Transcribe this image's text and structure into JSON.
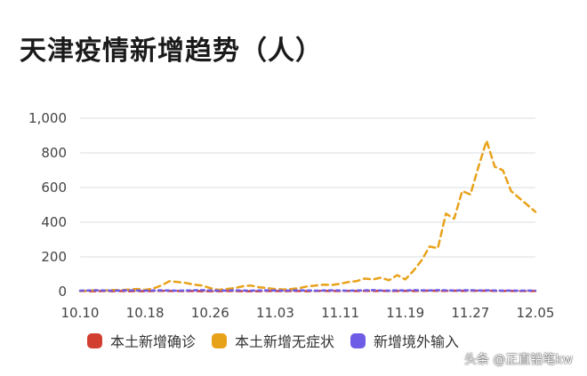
{
  "title": "天津疫情新增趋势（人）",
  "watermark": "头条 @正直铅笔kw",
  "colors": {
    "grid": "#dadce0",
    "axis_text": "#444444",
    "series": [
      "#d23f31",
      "#e8a21a",
      "#6f5ce6"
    ]
  },
  "chart_data": {
    "type": "line",
    "title": "天津疫情新增趋势（人）",
    "xlabel": "",
    "ylabel": "",
    "ylim": [
      0,
      1000
    ],
    "yticks": [
      "0",
      "200",
      "400",
      "600",
      "800",
      "1,000"
    ],
    "ytick_values": [
      0,
      200,
      400,
      600,
      800,
      1000
    ],
    "xticks": [
      "10.10",
      "10.18",
      "10.26",
      "11.03",
      "11.11",
      "11.19",
      "11.27",
      "12.05"
    ],
    "grid": true,
    "legend_position": "bottom",
    "x": [
      "10.10",
      "10.11",
      "10.12",
      "10.13",
      "10.14",
      "10.15",
      "10.16",
      "10.17",
      "10.18",
      "10.19",
      "10.20",
      "10.21",
      "10.22",
      "10.23",
      "10.24",
      "10.25",
      "10.26",
      "10.27",
      "10.28",
      "10.29",
      "10.30",
      "10.31",
      "11.01",
      "11.02",
      "11.03",
      "11.04",
      "11.05",
      "11.06",
      "11.07",
      "11.08",
      "11.09",
      "11.10",
      "11.11",
      "11.12",
      "11.13",
      "11.14",
      "11.15",
      "11.16",
      "11.17",
      "11.18",
      "11.19",
      "11.20",
      "11.21",
      "11.22",
      "11.23",
      "11.24",
      "11.25",
      "11.26",
      "11.27",
      "11.28",
      "11.29",
      "11.30",
      "12.01",
      "12.02",
      "12.03",
      "12.04",
      "12.05"
    ],
    "series": [
      {
        "name": "本土新增确诊",
        "values": [
          3,
          2,
          2,
          3,
          2,
          3,
          2,
          3,
          2,
          3,
          4,
          3,
          3,
          2,
          3,
          2,
          2,
          2,
          3,
          3,
          2,
          2,
          2,
          3,
          3,
          2,
          3,
          3,
          2,
          3,
          4,
          3,
          3,
          4,
          3,
          4,
          3,
          4,
          3,
          3,
          4,
          3,
          4,
          5,
          4,
          4,
          5,
          4,
          5,
          4,
          5,
          4,
          4,
          4,
          3,
          3,
          3
        ]
      },
      {
        "name": "本土新增无症状",
        "values": [
          3,
          5,
          8,
          6,
          9,
          8,
          12,
          15,
          10,
          18,
          35,
          60,
          55,
          50,
          40,
          35,
          20,
          10,
          15,
          20,
          30,
          35,
          25,
          20,
          15,
          12,
          15,
          20,
          30,
          35,
          40,
          38,
          45,
          55,
          60,
          75,
          70,
          80,
          65,
          95,
          70,
          120,
          180,
          260,
          250,
          450,
          420,
          580,
          560,
          720,
          870,
          720,
          700,
          580,
          540,
          500,
          460
        ]
      },
      {
        "name": "新增境外输入",
        "values": [
          5,
          6,
          7,
          6,
          5,
          6,
          7,
          6,
          5,
          6,
          7,
          6,
          5,
          6,
          7,
          8,
          6,
          5,
          6,
          7,
          6,
          5,
          6,
          7,
          6,
          5,
          6,
          7,
          6,
          5,
          6,
          7,
          6,
          5,
          6,
          7,
          8,
          6,
          5,
          7,
          6,
          8,
          7,
          6,
          8,
          7,
          6,
          7,
          8,
          6,
          7,
          6,
          5,
          6,
          5,
          6,
          5
        ]
      }
    ]
  }
}
